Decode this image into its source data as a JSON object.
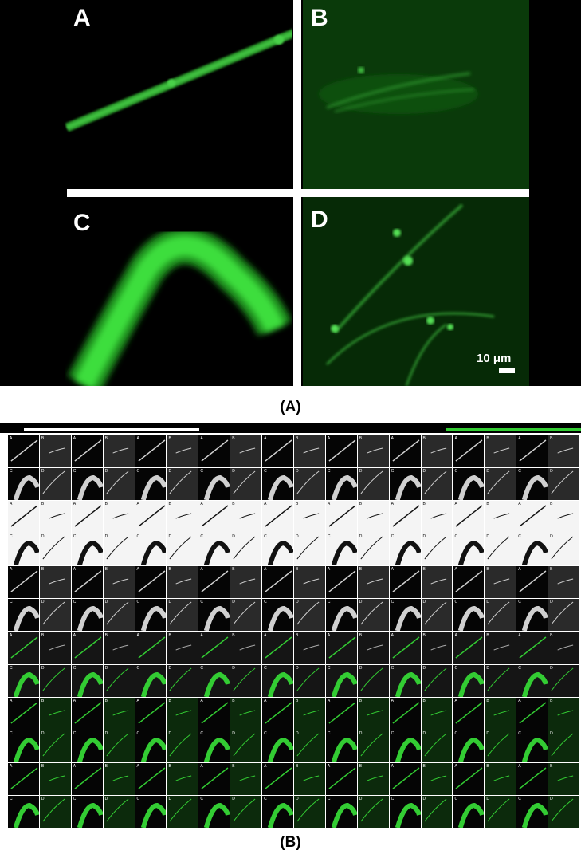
{
  "panels": [
    {
      "label": "A"
    },
    {
      "label": "B"
    },
    {
      "label": "C"
    },
    {
      "label": "D"
    }
  ],
  "scale_bar": {
    "text": "10 μm"
  },
  "captions": {
    "top": "(A)",
    "bottom": "(B)"
  },
  "grid": {
    "rows": 12,
    "cols": 18,
    "colors": {
      "green": "#33cc33",
      "white": "#ffffff",
      "black": "#000000"
    }
  }
}
